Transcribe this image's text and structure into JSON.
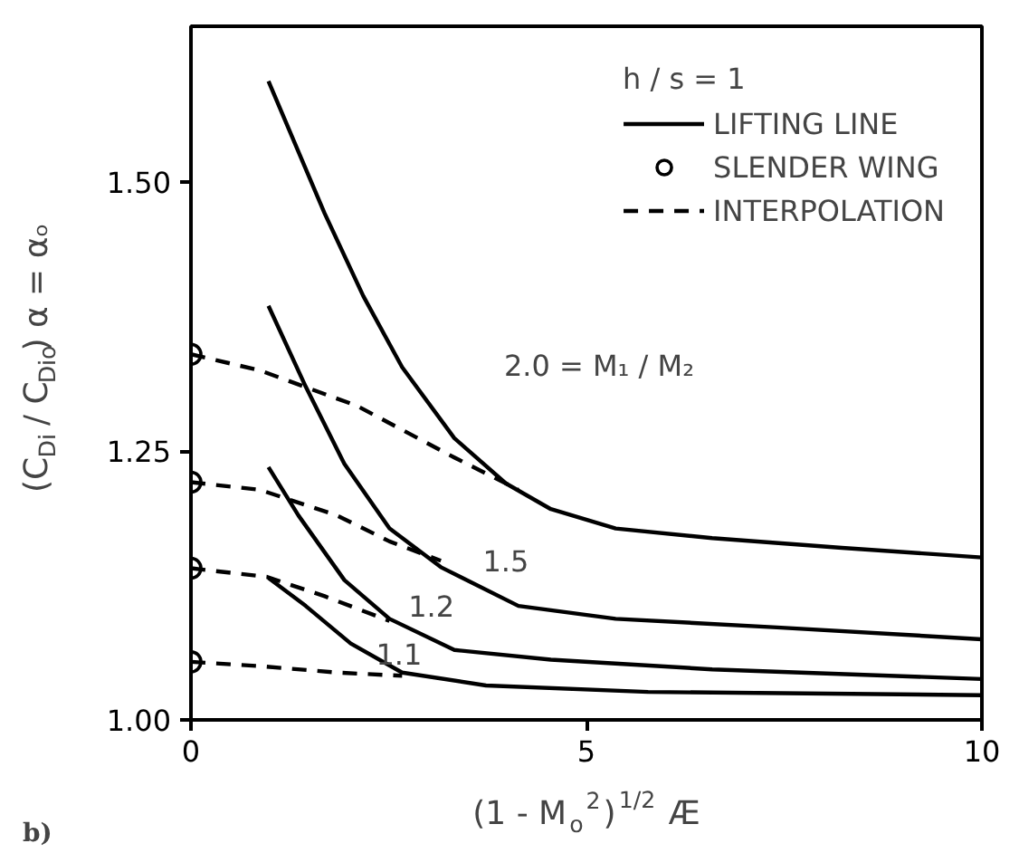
{
  "chart_data": {
    "type": "line",
    "xlabel": "(1 - M$_{o}$$^{2}$)$^{1/2}$ Æ",
    "ylabel": "(C$_{Di}$ / C$_{Dio}$) α = αₒ",
    "legend_title": "h / s = 1",
    "legend": "top right",
    "grid": false,
    "xlim": [
      0,
      10
    ],
    "xticks": [
      0,
      5,
      10
    ],
    "ylim": [
      1.0,
      1.645
    ],
    "yticks": [
      {
        "value": 1.0,
        "label": "1.00"
      },
      {
        "value": 1.25,
        "label": "1.25"
      },
      {
        "value": 1.5,
        "label": "1.50"
      }
    ],
    "series": [
      {
        "name": "LIFTING LINE",
        "line_style": "solid",
        "color": "#000000",
        "x": [
          0.98,
          1.69,
          2.18,
          2.67,
          3.33,
          3.98,
          4.55,
          5.37,
          6.59,
          8.23,
          10
        ],
        "values": [
          1.594,
          1.471,
          1.394,
          1.328,
          1.262,
          1.22,
          1.196,
          1.178,
          1.169,
          1.16,
          1.151
        ]
      },
      {
        "line_style": "solid",
        "color": "#000000",
        "x": [
          0.98,
          1.45,
          1.94,
          2.51,
          3.16,
          4.14,
          5.37,
          7.41,
          10
        ],
        "values": [
          1.385,
          1.31,
          1.238,
          1.178,
          1.142,
          1.106,
          1.094,
          1.086,
          1.075
        ]
      },
      {
        "line_style": "solid",
        "color": "#000000",
        "x": [
          0.98,
          1.36,
          1.94,
          2.51,
          3.33,
          4.55,
          6.59,
          10
        ],
        "values": [
          1.235,
          1.19,
          1.13,
          1.094,
          1.065,
          1.056,
          1.047,
          1.038
        ]
      },
      {
        "line_style": "solid",
        "color": "#000000",
        "x": [
          0.98,
          1.45,
          2.02,
          2.67,
          3.73,
          5.78,
          10
        ],
        "values": [
          1.132,
          1.106,
          1.071,
          1.044,
          1.032,
          1.026,
          1.023
        ]
      },
      {
        "name": "SLENDER WING",
        "type": "scatter",
        "marker": "circle",
        "color": "#000000",
        "x": [
          0,
          0,
          0,
          0
        ],
        "values": [
          1.34,
          1.221,
          1.141,
          1.054
        ]
      },
      {
        "name": "INTERPOLATION",
        "line_style": "dashed",
        "color": "#000000",
        "x": [
          0,
          0.87,
          2.1,
          3.33,
          4.14
        ],
        "values": [
          1.34,
          1.325,
          1.292,
          1.244,
          1.214
        ]
      },
      {
        "line_style": "dashed",
        "color": "#000000",
        "x": [
          0,
          0.87,
          1.85,
          2.51,
          3.16
        ],
        "values": [
          1.221,
          1.214,
          1.19,
          1.166,
          1.148
        ]
      },
      {
        "line_style": "dashed",
        "color": "#000000",
        "x": [
          0,
          0.96,
          1.69,
          2.51
        ],
        "values": [
          1.141,
          1.133,
          1.115,
          1.092
        ]
      },
      {
        "line_style": "dashed",
        "color": "#000000",
        "x": [
          0,
          0.87,
          1.85,
          2.67
        ],
        "values": [
          1.054,
          1.05,
          1.044,
          1.041
        ]
      }
    ],
    "annotations": [
      "2.0 = M₁ / M₂",
      "1.5",
      "1.2",
      "1.1",
      "b)"
    ]
  }
}
